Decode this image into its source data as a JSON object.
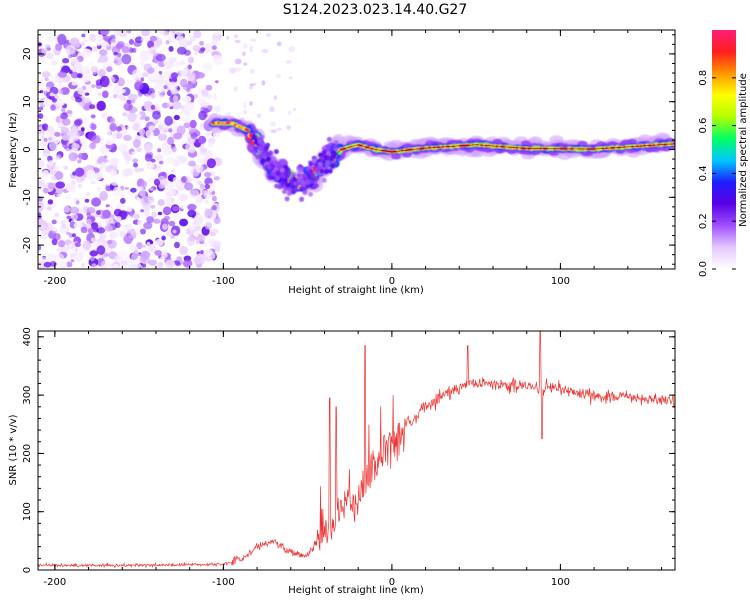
{
  "title": "S124.2023.023.14.40.G27",
  "chart_data": [
    {
      "type": "heatmap",
      "xlabel": "Height of straight line (km)",
      "ylabel": "Frequency (Hz)",
      "xlim": [
        -210,
        168
      ],
      "ylim": [
        -25,
        25
      ],
      "x_ticks": [
        -200,
        -100,
        0,
        100
      ],
      "y_ticks": [
        -20,
        -10,
        0,
        10,
        20
      ],
      "colorbar": {
        "label": "Normalized spectral amplitude",
        "range": [
          0,
          1
        ],
        "ticks": [
          "0.0",
          "0.2",
          "0.4",
          "0.6",
          "0.8"
        ],
        "colors": [
          "#ffffff",
          "#e6c8ff",
          "#a050ff",
          "#5a00e6",
          "#1e1eff",
          "#00c8ff",
          "#00ff64",
          "#b4ff00",
          "#ffff00",
          "#ff9600",
          "#ff1e1e",
          "#ff1e78"
        ]
      },
      "noise_region_x": [
        -210,
        -103
      ],
      "dominant_frequency_track": [
        {
          "x": -105,
          "y": 5.5
        },
        {
          "x": -95,
          "y": 5.5
        },
        {
          "x": -85,
          "y": 4
        },
        {
          "x": -78,
          "y": 0
        },
        {
          "x": -72,
          "y": -3.5
        },
        {
          "x": -65,
          "y": -6
        },
        {
          "x": -58,
          "y": -7
        },
        {
          "x": -50,
          "y": -6.5
        },
        {
          "x": -44,
          "y": -4
        },
        {
          "x": -38,
          "y": -2.5
        },
        {
          "x": -30,
          "y": 0
        },
        {
          "x": -20,
          "y": 1
        },
        {
          "x": -10,
          "y": 0
        },
        {
          "x": 0,
          "y": -0.5
        },
        {
          "x": 20,
          "y": 0.3
        },
        {
          "x": 50,
          "y": 1
        },
        {
          "x": 80,
          "y": 0.2
        },
        {
          "x": 120,
          "y": 0.1
        },
        {
          "x": 168,
          "y": 1.2
        }
      ]
    },
    {
      "type": "line",
      "xlabel": "Height of straight line (km)",
      "ylabel": "SNR (10 * v/v)",
      "xlim": [
        -210,
        168
      ],
      "ylim": [
        0,
        410
      ],
      "x_ticks": [
        -200,
        -100,
        0,
        100
      ],
      "y_ticks": [
        0,
        100,
        200,
        300,
        400
      ],
      "series_color": "#ee3333",
      "trend": [
        {
          "x": -210,
          "y": 8
        },
        {
          "x": -150,
          "y": 8
        },
        {
          "x": -100,
          "y": 10
        },
        {
          "x": -90,
          "y": 18
        },
        {
          "x": -80,
          "y": 40
        },
        {
          "x": -70,
          "y": 50
        },
        {
          "x": -60,
          "y": 30
        },
        {
          "x": -50,
          "y": 25
        },
        {
          "x": -40,
          "y": 70
        },
        {
          "x": -35,
          "y": 80
        },
        {
          "x": -30,
          "y": 120
        },
        {
          "x": -20,
          "y": 120
        },
        {
          "x": -15,
          "y": 160
        },
        {
          "x": -10,
          "y": 180
        },
        {
          "x": 0,
          "y": 220
        },
        {
          "x": 10,
          "y": 250
        },
        {
          "x": 20,
          "y": 280
        },
        {
          "x": 30,
          "y": 300
        },
        {
          "x": 45,
          "y": 320
        },
        {
          "x": 60,
          "y": 320
        },
        {
          "x": 80,
          "y": 315
        },
        {
          "x": 100,
          "y": 310
        },
        {
          "x": 120,
          "y": 300
        },
        {
          "x": 140,
          "y": 295
        },
        {
          "x": 168,
          "y": 290
        }
      ],
      "spikes": [
        {
          "x": -37,
          "y": 295
        },
        {
          "x": -33,
          "y": 280
        },
        {
          "x": -16,
          "y": 385
        },
        {
          "x": 45,
          "y": 385
        },
        {
          "x": 88,
          "y": 410
        },
        {
          "x": 89,
          "y": 225
        }
      ]
    }
  ]
}
